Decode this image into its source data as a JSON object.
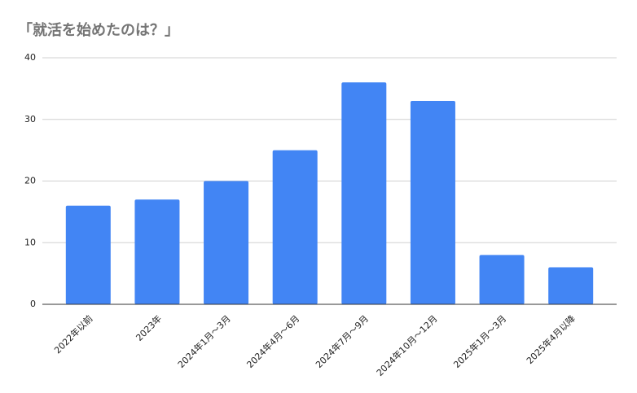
{
  "chart_data": {
    "type": "bar",
    "title": "「就活を始めたのは？」",
    "categories": [
      "2022年以前",
      "2023年",
      "2024年1月～3月",
      "2024年4月～6月",
      "2024年7月～9月",
      "2024年10月～12月",
      "2025年1月～3月",
      "2025年4月以降"
    ],
    "values": [
      16,
      17,
      20,
      25,
      36,
      33,
      8,
      6
    ],
    "color": "#4285f4",
    "ylim": [
      0,
      40
    ],
    "yticks": [
      0,
      10,
      20,
      30,
      40
    ],
    "grid": true
  }
}
